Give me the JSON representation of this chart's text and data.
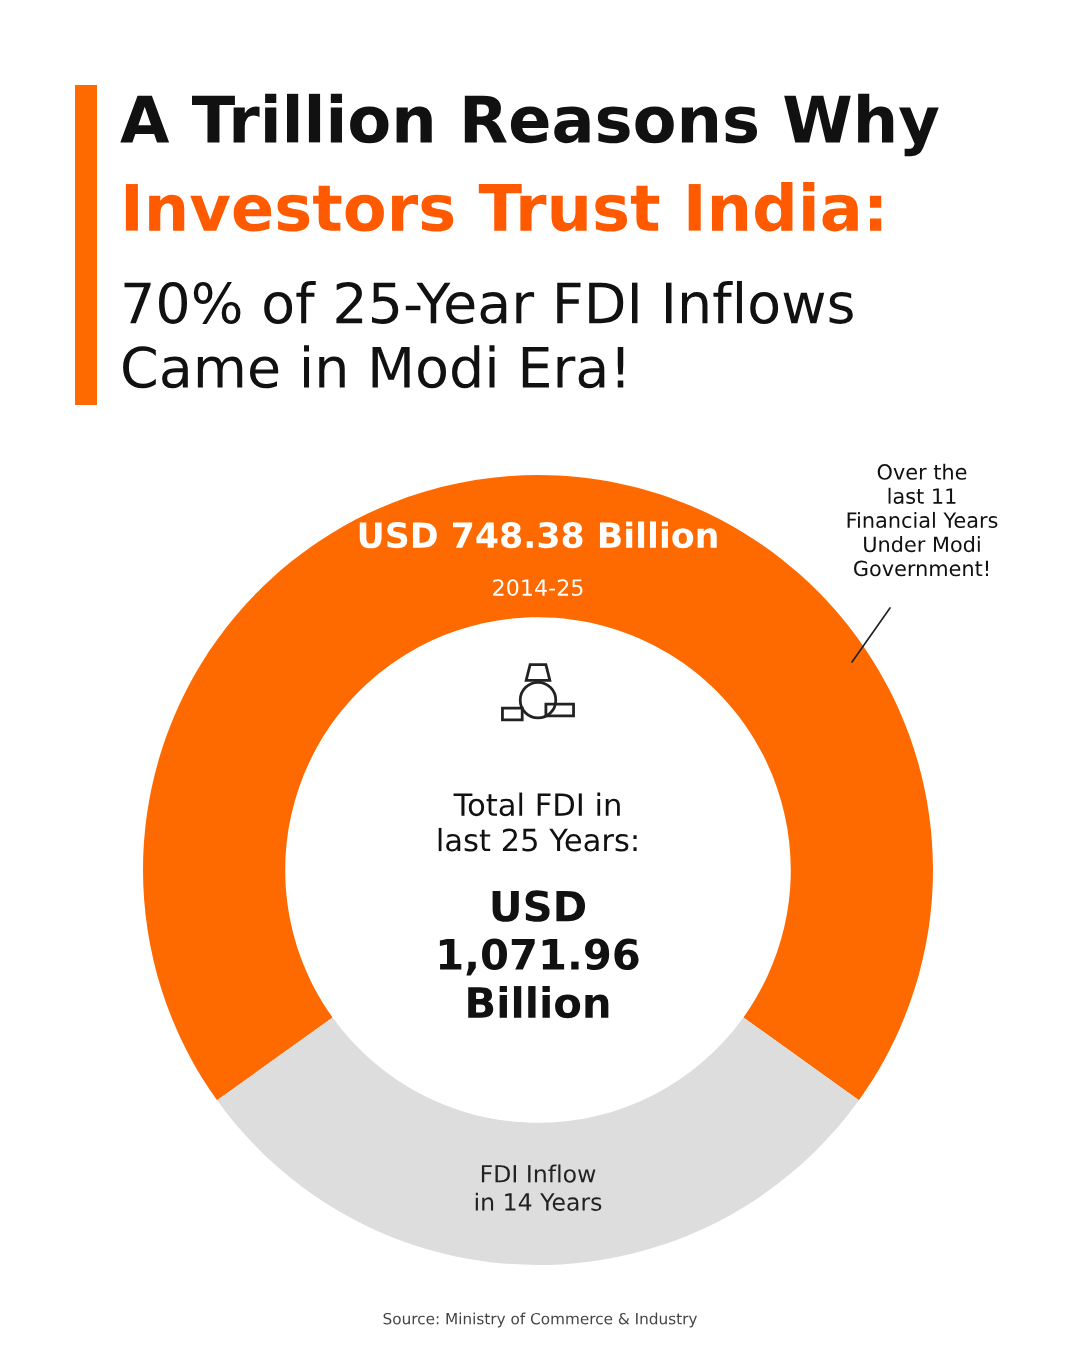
{
  "chart_data": {
    "type": "donut",
    "title": "A Trillion Reasons Why\nInvestors Trust India:",
    "subtitle": "70% of 25-Year FDI Inflows\nCame in Modi Era!",
    "categories": [
      "2014-25",
      "FDI Inflow\nin 14 Years"
    ],
    "values": [
      748.38,
      323.58
    ],
    "colors": [
      "#ff6a00",
      "#dddddd"
    ],
    "value_labels": [
      "USD 748.38 Billion",
      null
    ],
    "annotations": [
      "Total FDI in\nlast 25 Years:",
      "USD\n1,071.96\nBillion",
      "Over the\nlast 11\nFinancial Years\nUnder Modi\nGovernment!",
      "Source: Ministry of Commerce & Industry"
    ]
  }
}
